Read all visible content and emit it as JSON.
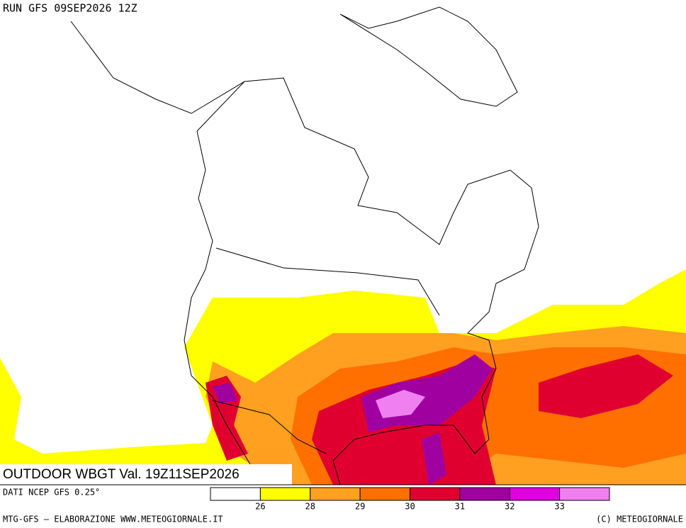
{
  "header": {
    "run": "RUN GFS 09SEP2026 12Z"
  },
  "map": {
    "title": "OUTDOOR WBGT Val. 19Z11SEP2026"
  },
  "legend": {
    "source": "DATI NCEP GFS 0.25°",
    "colors": [
      "#ffffff",
      "#ffff00",
      "#ffa020",
      "#ff7000",
      "#e00030",
      "#a000a0",
      "#e000e0",
      "#f080f0"
    ],
    "ticks": [
      26,
      28,
      29,
      30,
      31,
      32,
      33
    ]
  },
  "footer": {
    "left": "MTG-GFS — ELABORAZIONE WWW.METEOGIORNALE.IT",
    "right": "(C) METEOGIORNALE"
  }
}
